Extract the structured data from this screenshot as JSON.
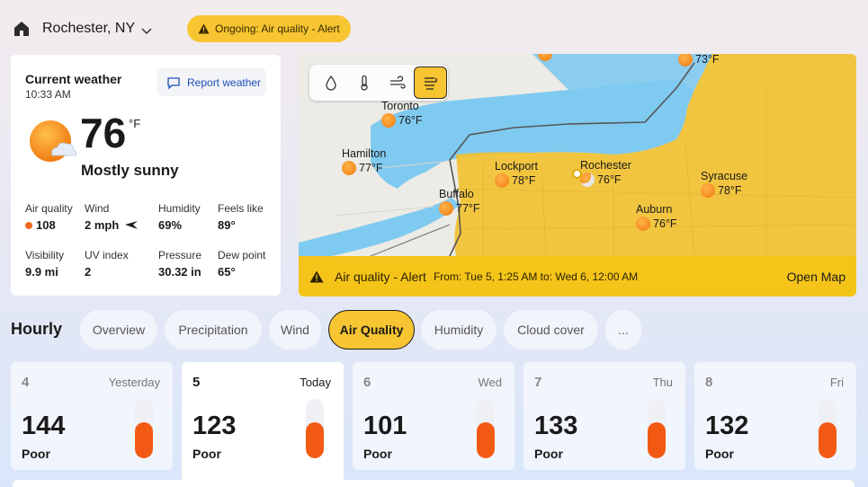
{
  "header": {
    "location": "Rochester, NY",
    "alert_pill": "Ongoing: Air quality - Alert"
  },
  "current": {
    "title": "Current weather",
    "time": "10:33 AM",
    "report_label": "Report weather",
    "temp": "76",
    "unit": "°F",
    "condition": "Mostly sunny",
    "stats": [
      {
        "label": "Air quality",
        "value": "108"
      },
      {
        "label": "Wind",
        "value": "2 mph"
      },
      {
        "label": "Humidity",
        "value": "69%"
      },
      {
        "label": "Feels like",
        "value": "89°"
      },
      {
        "label": "Visibility",
        "value": "9.9 mi"
      },
      {
        "label": "UV index",
        "value": "2"
      },
      {
        "label": "Pressure",
        "value": "30.32 in"
      },
      {
        "label": "Dew point",
        "value": "65°"
      }
    ],
    "colors": {
      "air_quality_dot": "#f06a1e"
    }
  },
  "map": {
    "layers": [
      "precipitation-icon",
      "temperature-icon",
      "wind-icon",
      "air-quality-icon"
    ],
    "active_layer": "air-quality-icon",
    "cities": [
      {
        "name": "Toronto",
        "temp": "76°F"
      },
      {
        "name": "Hamilton",
        "temp": "77°F"
      },
      {
        "name": "Buffalo",
        "temp": "77°F"
      },
      {
        "name": "Lockport",
        "temp": "78°F"
      },
      {
        "name": "Rochester",
        "temp": "76°F"
      },
      {
        "name": "Syracuse",
        "temp": "78°F"
      },
      {
        "name": "Auburn",
        "temp": "76°F"
      },
      {
        "name": "",
        "temp": "73°F"
      }
    ],
    "alert_title": "Air quality - Alert",
    "alert_range": "From: Tue 5, 1:25 AM to: Wed 6, 12:00 AM",
    "open_map": "Open Map",
    "colors": {
      "alert_zone": "#f2c12e",
      "water": "#7fcaf0",
      "alert_bar": "#f4c419"
    }
  },
  "hourly": {
    "label": "Hourly",
    "tabs": [
      "Overview",
      "Precipitation",
      "Wind",
      "Air Quality",
      "Humidity",
      "Cloud cover",
      "..."
    ],
    "active_tab": "Air Quality"
  },
  "days": [
    {
      "num": "4",
      "dow": "Yesterday",
      "aqi": "144",
      "cat": "Poor",
      "level": 0.6
    },
    {
      "num": "5",
      "dow": "Today",
      "aqi": "123",
      "cat": "Poor",
      "level": 0.6
    },
    {
      "num": "6",
      "dow": "Wed",
      "aqi": "101",
      "cat": "Poor",
      "level": 0.6
    },
    {
      "num": "7",
      "dow": "Thu",
      "aqi": "133",
      "cat": "Poor",
      "level": 0.6
    },
    {
      "num": "8",
      "dow": "Fri",
      "aqi": "132",
      "cat": "Poor",
      "level": 0.6
    }
  ]
}
